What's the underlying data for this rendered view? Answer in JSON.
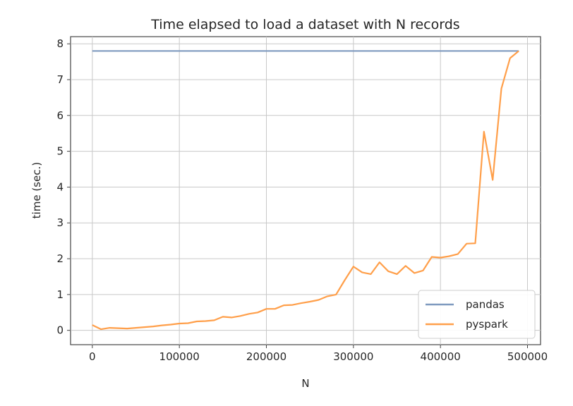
{
  "chart_data": {
    "type": "line",
    "title": "Time elapsed to load a dataset with N records",
    "xlabel": "N",
    "ylabel": "time (sec.)",
    "xlim": [
      -25000,
      515000
    ],
    "ylim": [
      -0.4,
      8.2
    ],
    "xticks": [
      0,
      100000,
      200000,
      300000,
      400000,
      500000
    ],
    "yticks": [
      0,
      1,
      2,
      3,
      4,
      5,
      6,
      7,
      8
    ],
    "grid": true,
    "legend_position": "lower-right",
    "series": [
      {
        "name": "pandas",
        "color": "#7f9abf",
        "points": [
          [
            0,
            7.8
          ],
          [
            490000,
            7.8
          ]
        ]
      },
      {
        "name": "pyspark",
        "color": "#ff9f4a",
        "points": [
          [
            0,
            0.15
          ],
          [
            10000,
            0.03
          ],
          [
            20000,
            0.07
          ],
          [
            30000,
            0.06
          ],
          [
            40000,
            0.05
          ],
          [
            50000,
            0.07
          ],
          [
            60000,
            0.09
          ],
          [
            70000,
            0.11
          ],
          [
            80000,
            0.14
          ],
          [
            90000,
            0.16
          ],
          [
            100000,
            0.19
          ],
          [
            110000,
            0.2
          ],
          [
            120000,
            0.25
          ],
          [
            130000,
            0.26
          ],
          [
            140000,
            0.28
          ],
          [
            150000,
            0.38
          ],
          [
            160000,
            0.36
          ],
          [
            170000,
            0.4
          ],
          [
            180000,
            0.46
          ],
          [
            190000,
            0.5
          ],
          [
            200000,
            0.6
          ],
          [
            210000,
            0.6
          ],
          [
            220000,
            0.7
          ],
          [
            230000,
            0.71
          ],
          [
            240000,
            0.76
          ],
          [
            250000,
            0.8
          ],
          [
            260000,
            0.85
          ],
          [
            270000,
            0.95
          ],
          [
            280000,
            1.0
          ],
          [
            290000,
            1.4
          ],
          [
            300000,
            1.78
          ],
          [
            310000,
            1.62
          ],
          [
            320000,
            1.57
          ],
          [
            330000,
            1.9
          ],
          [
            340000,
            1.65
          ],
          [
            350000,
            1.57
          ],
          [
            360000,
            1.8
          ],
          [
            370000,
            1.6
          ],
          [
            380000,
            1.67
          ],
          [
            390000,
            2.05
          ],
          [
            400000,
            2.03
          ],
          [
            410000,
            2.07
          ],
          [
            420000,
            2.13
          ],
          [
            430000,
            2.42
          ],
          [
            440000,
            2.43
          ],
          [
            450000,
            5.55
          ],
          [
            460000,
            4.2
          ],
          [
            470000,
            6.75
          ],
          [
            480000,
            7.6
          ],
          [
            490000,
            7.8
          ]
        ]
      }
    ]
  }
}
